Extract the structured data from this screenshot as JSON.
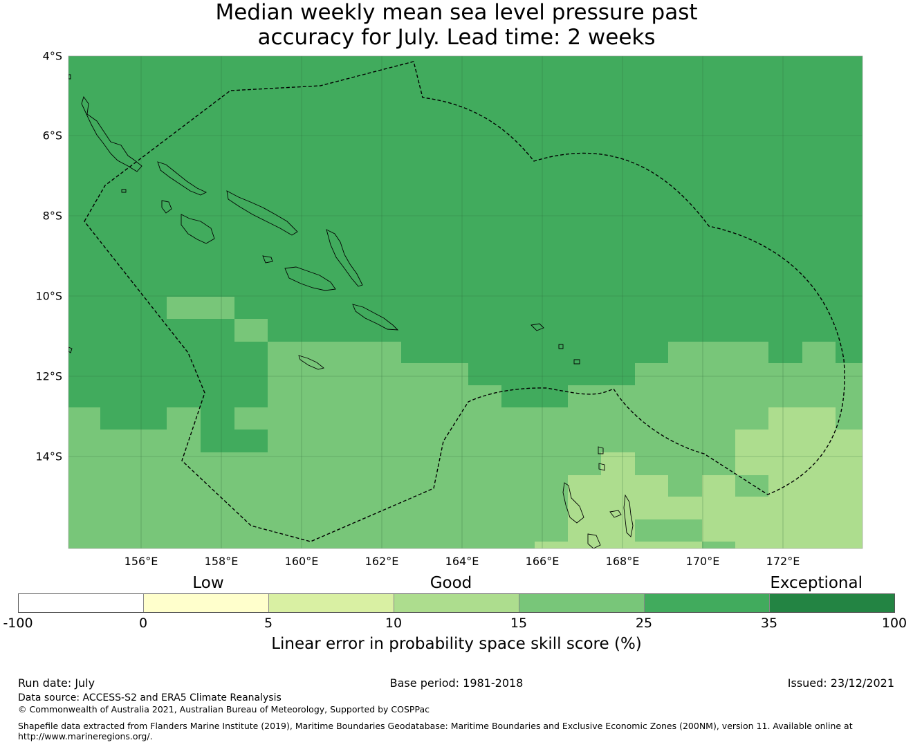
{
  "title": {
    "line1": "Median weekly mean sea level pressure past",
    "line2": "accuracy for July. Lead time: 2 weeks"
  },
  "map": {
    "lat_labels": [
      "4°S",
      "6°S",
      "8°S",
      "10°S",
      "12°S",
      "14°S"
    ],
    "lon_labels": [
      "156°E",
      "158°E",
      "160°E",
      "162°E",
      "164°E",
      "166°E",
      "168°E",
      "170°E",
      "172°E"
    ],
    "lon_range": [
      154.2,
      174.0
    ],
    "lat_range": [
      -16.3,
      -4.0
    ],
    "features": [
      "coastlines",
      "eez-boundary-dashed",
      "graticule"
    ]
  },
  "colorbar": {
    "categories": [
      "Low",
      "Good",
      "Exceptional"
    ],
    "ticks": [
      "-100",
      "0",
      "5",
      "10",
      "15",
      "25",
      "35",
      "100"
    ],
    "colors": [
      "#ffffff",
      "#ffffcc",
      "#d9f0a3",
      "#addd8e",
      "#78c679",
      "#41ab5d",
      "#238443"
    ],
    "title": "Linear error in probability space skill score (%)"
  },
  "footer": {
    "run_date": "Run date: July",
    "base_period": "Base period: 1981-2018",
    "issued": "Issued: 23/12/2021",
    "data_source": "Data source: ACCESS-S2 and ERA5 Climate Reanalysis",
    "copyright": "© Commonwealth of Australia 2021, Australian Bureau of Meteorology, Supported by COSPPac",
    "shapefile_line1": "Shapefile data extracted from Flanders Marine Institute (2019), Maritime Boundaries Geodatabase: Maritime Boundaries and Exclusive Economic Zones (200NM), version 11. Available online at",
    "shapefile_line2": "http://www.marineregions.org/."
  }
}
